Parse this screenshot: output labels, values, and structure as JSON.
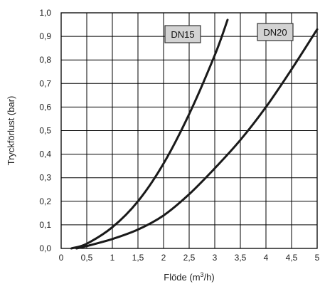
{
  "chart_data": {
    "type": "line",
    "title": "",
    "ylabel": "Tryckförlust (bar)",
    "xlabel": {
      "main": "Flöde (m",
      "sup": "3",
      "tail": "/h)"
    },
    "xlim": [
      0,
      5
    ],
    "ylim": [
      0,
      1.0
    ],
    "x_ticks": [
      "0",
      "0,5",
      "1",
      "1,5",
      "2",
      "2,5",
      "3",
      "3,5",
      "4",
      "4,5",
      "5"
    ],
    "x_tick_values": [
      0,
      0.5,
      1,
      1.5,
      2,
      2.5,
      3,
      3.5,
      4,
      4.5,
      5
    ],
    "y_ticks": [
      "0,0",
      "0,1",
      "0,2",
      "0,3",
      "0,4",
      "0,5",
      "0,6",
      "0,7",
      "0,8",
      "0,9",
      "1,0"
    ],
    "y_tick_values": [
      0,
      0.1,
      0.2,
      0.3,
      0.4,
      0.5,
      0.6,
      0.7,
      0.8,
      0.9,
      1.0
    ],
    "grid": true,
    "series": [
      {
        "name": "DN15",
        "x": [
          0.2,
          0.5,
          1.0,
          1.5,
          2.0,
          2.5,
          3.0,
          3.25
        ],
        "y": [
          0.0,
          0.02,
          0.09,
          0.2,
          0.36,
          0.57,
          0.82,
          0.97
        ]
      },
      {
        "name": "DN20",
        "x": [
          0.3,
          0.5,
          1.0,
          1.5,
          2.0,
          2.5,
          3.0,
          3.5,
          4.0,
          4.5,
          5.0
        ],
        "y": [
          0.0,
          0.01,
          0.04,
          0.08,
          0.14,
          0.23,
          0.34,
          0.46,
          0.6,
          0.76,
          0.93
        ]
      }
    ],
    "colors": {
      "line": "#1a1a1a",
      "legend_fill": "#d3d3d3"
    }
  }
}
